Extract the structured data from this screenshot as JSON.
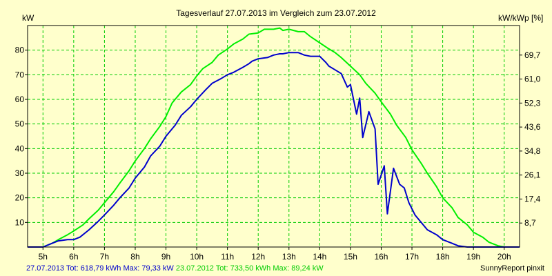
{
  "chart_data": {
    "type": "line",
    "title": "Tagesverlauf 27.07.2013 im Vergleich zum 23.07.2012",
    "ylabel_left": "kW",
    "ylabel_right": "kW/kWp [%]",
    "xlim": [
      4.5,
      20.5
    ],
    "ylim": [
      0,
      90
    ],
    "y_ticks": [
      10,
      20,
      30,
      40,
      50,
      60,
      70,
      80
    ],
    "y_tick_labels": [
      "10",
      "20",
      "30",
      "40",
      "50",
      "60",
      "70",
      "80"
    ],
    "right_ticks": [
      {
        "y": 9.75,
        "label": "8,7"
      },
      {
        "y": 19.5,
        "label": "17,4"
      },
      {
        "y": 29.25,
        "label": "26,1"
      },
      {
        "y": 39.0,
        "label": "34,8"
      },
      {
        "y": 48.75,
        "label": "43,6"
      },
      {
        "y": 58.5,
        "label": "52,3"
      },
      {
        "y": 68.25,
        "label": "61,0"
      },
      {
        "y": 78.0,
        "label": "69,7"
      }
    ],
    "x_ticks": [
      5,
      6,
      7,
      8,
      9,
      10,
      11,
      12,
      13,
      14,
      15,
      16,
      17,
      18,
      19,
      20
    ],
    "x_tick_labels": [
      "5h",
      "6h",
      "7h",
      "8h",
      "9h",
      "10h",
      "11h",
      "12h",
      "13h",
      "14h",
      "15h",
      "16h",
      "17h",
      "18h",
      "19h",
      "20h"
    ],
    "grid": true,
    "legend": "bottom",
    "series": [
      {
        "name": "27.07.2013",
        "color": "#0000cc",
        "x": [
          4.5,
          5.0,
          5.3,
          5.5,
          5.8,
          6.0,
          6.2,
          6.5,
          6.8,
          7.0,
          7.3,
          7.5,
          7.8,
          8.0,
          8.3,
          8.5,
          8.8,
          9.0,
          9.3,
          9.5,
          9.8,
          10.0,
          10.3,
          10.5,
          10.8,
          11.0,
          11.2,
          11.5,
          11.7,
          11.8,
          12.0,
          12.3,
          12.5,
          12.7,
          12.8,
          13.0,
          13.2,
          13.3,
          13.5,
          13.7,
          13.8,
          14.0,
          14.2,
          14.3,
          14.5,
          14.7,
          14.9,
          15.0,
          15.2,
          15.3,
          15.4,
          15.6,
          15.8,
          15.9,
          16.1,
          16.2,
          16.4,
          16.6,
          16.75,
          16.9,
          17.1,
          17.3,
          17.5,
          17.8,
          18.0,
          18.3,
          18.5,
          18.8,
          19.0,
          19.3,
          19.5,
          19.8,
          20.0,
          20.5
        ],
        "y": [
          0,
          0,
          1.5,
          2.5,
          3,
          3,
          4,
          7,
          10.5,
          13,
          17,
          20,
          24,
          28,
          32.5,
          37,
          41,
          45,
          49.5,
          53.5,
          57,
          60,
          64,
          66.5,
          68.5,
          70,
          71,
          73,
          74.5,
          75.5,
          76.5,
          77,
          78,
          78.5,
          78.5,
          79,
          79,
          79,
          78,
          77.5,
          77.5,
          77.5,
          75,
          73.5,
          72,
          70.5,
          65,
          66,
          54,
          60.5,
          44.5,
          55,
          48,
          25.5,
          33,
          13.5,
          32,
          25.5,
          24,
          18,
          13,
          10,
          7,
          5,
          3,
          1.5,
          0.5,
          0,
          0,
          0,
          0,
          0,
          0,
          0
        ]
      },
      {
        "name": "23.07.2012",
        "color": "#00ee00",
        "x": [
          4.5,
          5.0,
          5.3,
          5.5,
          5.8,
          6.0,
          6.3,
          6.5,
          6.8,
          7.0,
          7.3,
          7.5,
          7.8,
          8.0,
          8.3,
          8.5,
          8.8,
          9.0,
          9.2,
          9.5,
          9.8,
          10.0,
          10.2,
          10.5,
          10.7,
          11.0,
          11.2,
          11.5,
          11.7,
          12.0,
          12.2,
          12.5,
          12.7,
          12.8,
          13.0,
          13.3,
          13.5,
          13.7,
          14.0,
          14.3,
          14.5,
          14.7,
          15.0,
          15.3,
          15.5,
          15.8,
          16.0,
          16.3,
          16.5,
          16.8,
          17.0,
          17.3,
          17.5,
          17.8,
          18.0,
          18.3,
          18.5,
          18.8,
          19.0,
          19.3,
          19.5,
          19.8,
          20.0,
          20.5
        ],
        "y": [
          0,
          0,
          1.5,
          3,
          5,
          6.5,
          9,
          11.5,
          15,
          18,
          22.5,
          26,
          31,
          35,
          40,
          44,
          49,
          53,
          58.5,
          63,
          66,
          69.5,
          72.5,
          75,
          78,
          80.5,
          82.5,
          84.5,
          86.5,
          87,
          88.5,
          88.5,
          89,
          88,
          88.5,
          87.5,
          87.5,
          85.5,
          83,
          80.5,
          79,
          77,
          73.5,
          70,
          66.5,
          62.5,
          59,
          54,
          49.5,
          44.5,
          39.5,
          34,
          30,
          24.5,
          20,
          16,
          12,
          9,
          6,
          4,
          2,
          0.5,
          0,
          0
        ]
      }
    ]
  },
  "footer": {
    "s1_text": "27.07.2013 Tot: 618,79 kWh Max: 79,33 kW",
    "s2_text": "23.07.2012 Tot: 733,50 kWh Max: 89,24 kW",
    "credit": "SunnyReport pinxit"
  }
}
